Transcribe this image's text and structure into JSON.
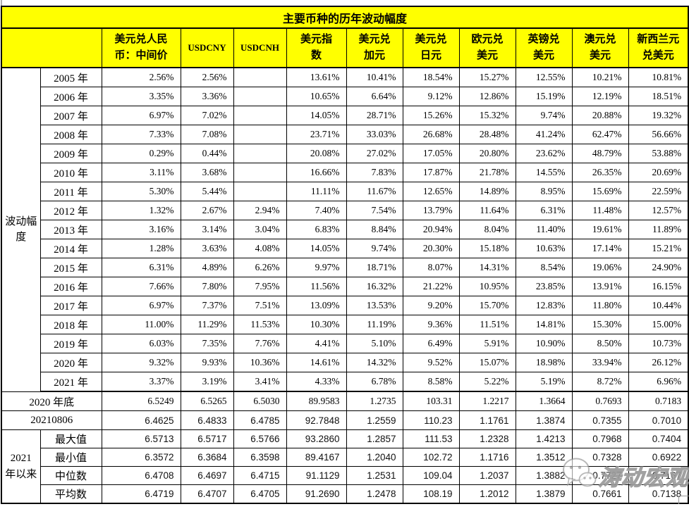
{
  "title": "主要币种的历年波动幅度",
  "watermark": {
    "icon": "wechat-icon",
    "text": "涛动宏观"
  },
  "colors": {
    "header_fill": "#ffff00",
    "border": "#000000",
    "watermark_gray": "#919191"
  },
  "chart_data": {
    "type": "table",
    "title": "主要币种的历年波动幅度",
    "columns": [
      "美元兑人民币：中间价",
      "USDCNY",
      "USDCNH",
      "美元指数",
      "美元兑加元",
      "美元兑日元",
      "欧元兑美元",
      "英镑兑美元",
      "澳元兑美元",
      "新西兰元兑美元"
    ],
    "row_group_label": "波动幅度",
    "year_rows": [
      {
        "label": "2005 年",
        "values": [
          "2.56%",
          "2.56%",
          "",
          "13.61%",
          "10.41%",
          "18.54%",
          "15.27%",
          "12.55%",
          "10.21%",
          "10.81%"
        ]
      },
      {
        "label": "2006 年",
        "values": [
          "3.35%",
          "3.36%",
          "",
          "10.65%",
          "6.64%",
          "9.12%",
          "12.86%",
          "15.19%",
          "12.19%",
          "18.51%"
        ]
      },
      {
        "label": "2007 年",
        "values": [
          "6.97%",
          "7.02%",
          "",
          "14.05%",
          "28.71%",
          "15.26%",
          "15.32%",
          "9.74%",
          "20.88%",
          "19.32%"
        ]
      },
      {
        "label": "2008 年",
        "values": [
          "7.33%",
          "7.08%",
          "",
          "23.71%",
          "33.03%",
          "26.68%",
          "28.48%",
          "41.24%",
          "62.47%",
          "56.66%"
        ]
      },
      {
        "label": "2009 年",
        "values": [
          "0.29%",
          "0.44%",
          "",
          "20.08%",
          "27.02%",
          "17.05%",
          "20.80%",
          "23.62%",
          "48.79%",
          "53.88%"
        ]
      },
      {
        "label": "2010 年",
        "values": [
          "3.11%",
          "3.68%",
          "",
          "16.66%",
          "7.83%",
          "17.87%",
          "21.78%",
          "14.55%",
          "26.35%",
          "20.69%"
        ]
      },
      {
        "label": "2011 年",
        "values": [
          "5.30%",
          "5.44%",
          "",
          "11.11%",
          "11.67%",
          "12.65%",
          "14.89%",
          "8.95%",
          "15.69%",
          "22.59%"
        ]
      },
      {
        "label": "2012 年",
        "values": [
          "1.32%",
          "2.67%",
          "2.94%",
          "7.40%",
          "7.54%",
          "13.79%",
          "11.64%",
          "6.31%",
          "11.48%",
          "12.57%"
        ]
      },
      {
        "label": "2013 年",
        "values": [
          "3.16%",
          "3.14%",
          "3.04%",
          "6.83%",
          "8.84%",
          "20.94%",
          "8.04%",
          "11.40%",
          "19.61%",
          "11.89%"
        ]
      },
      {
        "label": "2014 年",
        "values": [
          "1.28%",
          "3.63%",
          "4.08%",
          "14.05%",
          "9.74%",
          "20.30%",
          "15.18%",
          "10.63%",
          "17.14%",
          "15.21%"
        ]
      },
      {
        "label": "2015 年",
        "values": [
          "6.31%",
          "4.89%",
          "6.26%",
          "9.97%",
          "18.71%",
          "8.07%",
          "14.31%",
          "8.54%",
          "19.06%",
          "24.90%"
        ]
      },
      {
        "label": "2016 年",
        "values": [
          "7.66%",
          "7.80%",
          "7.95%",
          "11.56%",
          "16.32%",
          "21.22%",
          "10.95%",
          "23.85%",
          "13.91%",
          "16.15%"
        ]
      },
      {
        "label": "2017 年",
        "values": [
          "6.97%",
          "7.37%",
          "7.51%",
          "13.09%",
          "13.53%",
          "9.20%",
          "15.70%",
          "12.83%",
          "11.80%",
          "10.44%"
        ]
      },
      {
        "label": "2018 年",
        "values": [
          "11.00%",
          "11.29%",
          "11.53%",
          "10.30%",
          "11.19%",
          "9.36%",
          "11.51%",
          "14.81%",
          "15.30%",
          "15.00%"
        ]
      },
      {
        "label": "2019 年",
        "values": [
          "6.03%",
          "7.35%",
          "7.76%",
          "4.41%",
          "5.10%",
          "6.49%",
          "5.91%",
          "10.90%",
          "8.50%",
          "10.73%"
        ]
      },
      {
        "label": "2020 年",
        "values": [
          "9.32%",
          "9.93%",
          "10.36%",
          "14.61%",
          "14.32%",
          "9.52%",
          "15.07%",
          "18.98%",
          "33.94%",
          "26.12%"
        ]
      },
      {
        "label": "2021 年",
        "values": [
          "3.37%",
          "3.19%",
          "3.41%",
          "4.33%",
          "6.78%",
          "8.58%",
          "5.22%",
          "5.19%",
          "8.72%",
          "6.96%"
        ]
      }
    ],
    "summary_rows": [
      {
        "label": "2020 年底",
        "values": [
          "6.5249",
          "6.5265",
          "6.5030",
          "89.9583",
          "1.2735",
          "103.31",
          "1.2217",
          "1.3664",
          "0.7693",
          "0.7183"
        ]
      },
      {
        "label": "20210806",
        "values": [
          "6.4625",
          "6.4833",
          "6.4785",
          "92.7848",
          "1.2559",
          "110.23",
          "1.1761",
          "1.3874",
          "0.7355",
          "0.7010"
        ]
      }
    ],
    "stats_group_label": "2021 年以来",
    "stats_rows": [
      {
        "label": "最大值",
        "values": [
          "6.5713",
          "6.5717",
          "6.5766",
          "93.2860",
          "1.2857",
          "111.53",
          "1.2328",
          "1.4213",
          "0.7968",
          "0.7404"
        ]
      },
      {
        "label": "最小值",
        "values": [
          "6.3572",
          "6.3684",
          "6.3598",
          "89.4167",
          "1.2040",
          "102.72",
          "1.1716",
          "1.3512",
          "0.7328",
          "0.6922"
        ]
      },
      {
        "label": "中位数",
        "values": [
          "6.4708",
          "6.4697",
          "6.4715",
          "91.1129",
          "1.2531",
          "109.04",
          "1.2037",
          "1.3882",
          "0.7727",
          "0.7167"
        ]
      },
      {
        "label": "平均数",
        "values": [
          "6.4719",
          "6.4707",
          "6.4705",
          "91.2690",
          "1.2478",
          "108.19",
          "1.2012",
          "1.3879",
          "0.7661",
          "0.7138"
        ]
      }
    ]
  }
}
